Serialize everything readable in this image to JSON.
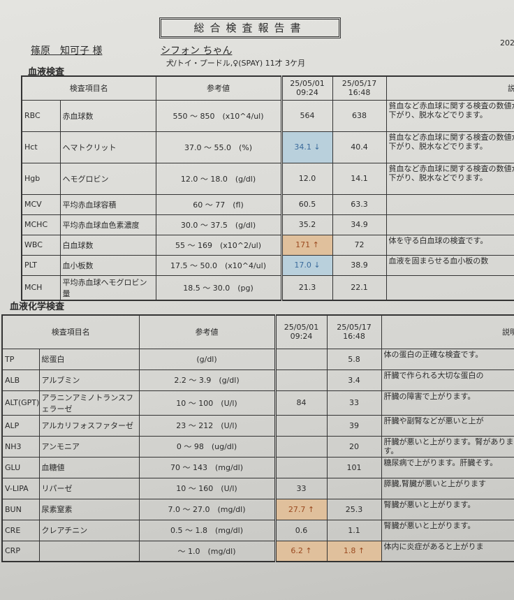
{
  "title": "総合検査報告書",
  "date_partial": "202",
  "owner": "篠原　知可子 様",
  "pet_name": "シフォン ちゃん",
  "pet_info": "犬/トイ・プードル,♀(SPAY) 11才 3ケ月",
  "headers": {
    "item": "検査項目名",
    "ref": "参考値",
    "d1": "25/05/01",
    "t1": "09:24",
    "d2": "25/05/17",
    "t2": "16:48",
    "desc": "説明"
  },
  "blood": {
    "section": "血液検査",
    "rows": [
      {
        "code": "RBC",
        "name": "赤血球数",
        "ref": "550 ～ 850　(x10^4/ul)",
        "v1": "564",
        "v2": "638",
        "desc": "貧血など赤血球に関する検査の数値が下がり、脱水などでります。"
      },
      {
        "code": "Hct",
        "name": "ヘマトクリット",
        "ref": "37.0 ～ 55.0　(%)",
        "v1": "34.1 ↓",
        "v2": "40.4",
        "desc": "貧血など赤血球に関する検査の数値が下がり、脱水などでります。",
        "flag1": "low"
      },
      {
        "code": "Hgb",
        "name": "ヘモグロビン",
        "ref": "12.0 ～ 18.0　(g/dl)",
        "v1": "12.0",
        "v2": "14.1",
        "desc": "貧血など赤血球に関する検査の数値が下がり、脱水などでります。"
      },
      {
        "code": "MCV",
        "name": "平均赤血球容積",
        "ref": "60 ～ 77　(fl)",
        "v1": "60.5",
        "v2": "63.3",
        "desc": ""
      },
      {
        "code": "MCHC",
        "name": "平均赤血球血色素濃度",
        "ref": "30.0 ～ 37.5　(g/dl)",
        "v1": "35.2",
        "v2": "34.9",
        "desc": ""
      },
      {
        "code": "WBC",
        "name": "白血球数",
        "ref": "55 ～ 169　(x10^2/ul)",
        "v1": "171 ↑",
        "v2": "72",
        "desc": "体を守る白血球の検査です。",
        "flag1": "high"
      },
      {
        "code": "PLT",
        "name": "血小板数",
        "ref": "17.5 ～ 50.0　(x10^4/ul)",
        "v1": "17.0 ↓",
        "v2": "38.9",
        "desc": "血液を固まらせる血小板の数",
        "flag1": "low"
      },
      {
        "code": "MCH",
        "name": "平均赤血球ヘモグロビン量",
        "ref": "18.5 ～ 30.0　(pg)",
        "v1": "21.3",
        "v2": "22.1",
        "desc": ""
      }
    ]
  },
  "chem": {
    "section": "血液化学検査",
    "rows": [
      {
        "code": "TP",
        "name": "総蛋白",
        "ref": "(g/dl)",
        "v1": "",
        "v2": "5.8",
        "desc": "体の蛋白の正確な検査です。"
      },
      {
        "code": "ALB",
        "name": "アルブミン",
        "ref": "2.2 ～ 3.9　(g/dl)",
        "v1": "",
        "v2": "3.4",
        "desc": "肝臓で作られる大切な蛋白の"
      },
      {
        "code": "ALT(GPT)",
        "name": "アラニンアミノトランスフェラーゼ",
        "ref": "10 ～ 100　(U/l)",
        "v1": "84",
        "v2": "33",
        "desc": "肝臓の障害で上がります。"
      },
      {
        "code": "ALP",
        "name": "アルカリフォスファターゼ",
        "ref": "23 ～ 212　(U/l)",
        "v1": "",
        "v2": "39",
        "desc": "肝臓や副腎などが悪いと上が"
      },
      {
        "code": "NH3",
        "name": "アンモニア",
        "ref": "0 ～ 98　(ug/dl)",
        "v1": "",
        "v2": "20",
        "desc": "肝臓が悪いと上がります。腎があります。"
      },
      {
        "code": "GLU",
        "name": "血糖値",
        "ref": "70 ～ 143　(mg/dl)",
        "v1": "",
        "v2": "101",
        "desc": "糖尿病で上がります。肝臓そす。"
      },
      {
        "code": "V-LIPA",
        "name": "リパーゼ",
        "ref": "10 ～ 160　(U/l)",
        "v1": "33",
        "v2": "",
        "desc": "膵臓,腎臓が悪いと上がります"
      },
      {
        "code": "BUN",
        "name": "尿素窒素",
        "ref": "7.0 ～ 27.0　(mg/dl)",
        "v1": "27.7 ↑",
        "v2": "25.3",
        "desc": "腎臓が悪いと上がります。",
        "flag1": "high"
      },
      {
        "code": "CRE",
        "name": "クレアチニン",
        "ref": "0.5 ～ 1.8　(mg/dl)",
        "v1": "0.6",
        "v2": "1.1",
        "desc": "腎臓が悪いと上がります。"
      },
      {
        "code": "CRP",
        "name": "",
        "ref": "～ 1.0　(mg/dl)",
        "v1": "6.2 ↑",
        "v2": "1.8 ↑",
        "desc": "体内に炎症があると上がりま",
        "flag1": "high",
        "flag2": "high"
      }
    ]
  },
  "colors": {
    "low": "#b9d0dc",
    "high": "#e0c09c"
  }
}
